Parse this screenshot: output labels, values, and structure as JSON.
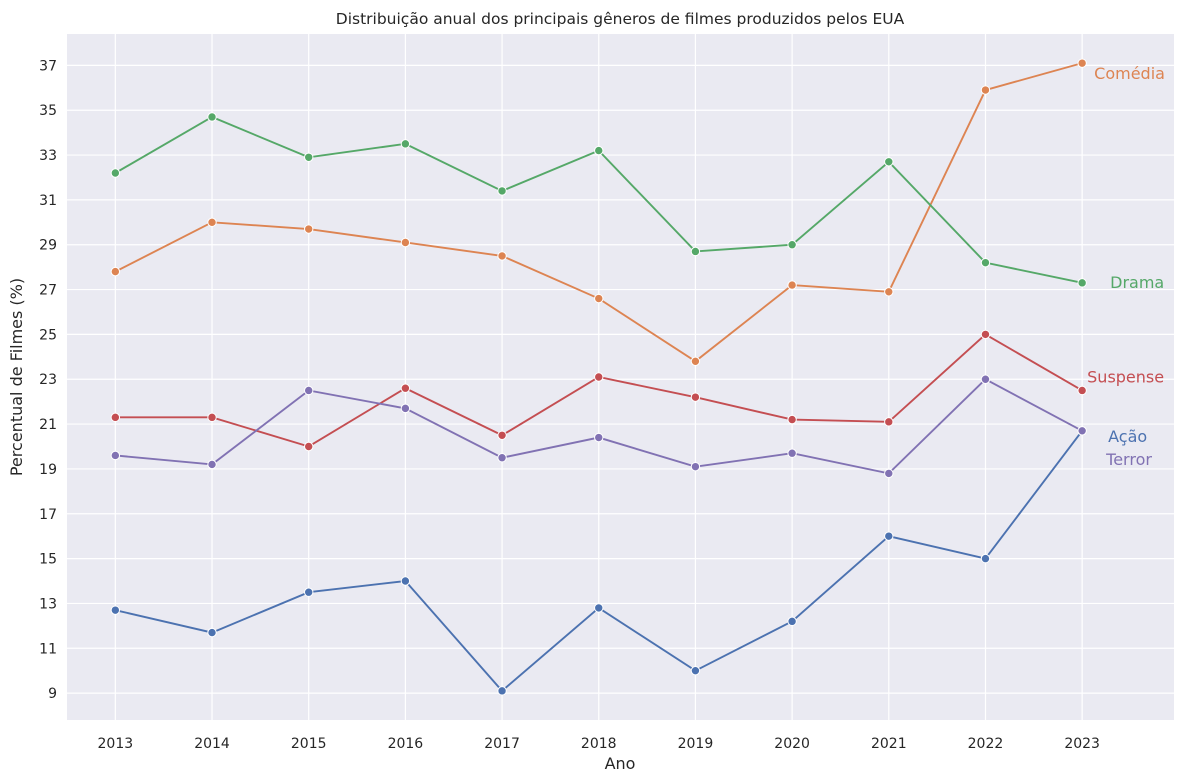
{
  "chart_data": {
    "type": "line",
    "title": "Distribuição anual dos principais gêneros de filmes produzidos pelos EUA",
    "xlabel": "Ano",
    "ylabel": "Percentual de Filmes (%)",
    "x": [
      2013,
      2014,
      2015,
      2016,
      2017,
      2018,
      2019,
      2020,
      2021,
      2022,
      2023
    ],
    "xlim": [
      2012.5,
      2023.95
    ],
    "ylim": [
      7.8,
      38.4
    ],
    "yticks": [
      9,
      11,
      13,
      15,
      17,
      19,
      21,
      23,
      25,
      27,
      29,
      31,
      33,
      35,
      37
    ],
    "grid": true,
    "legend": "inline labels at line ends",
    "background": "#eaeaf2",
    "series": [
      {
        "name": "Ação",
        "color": "#4c72b0",
        "values": [
          12.7,
          11.7,
          13.5,
          14.0,
          9.1,
          12.8,
          10.0,
          12.2,
          16.0,
          15.0,
          20.7
        ]
      },
      {
        "name": "Comédia",
        "color": "#dd8452",
        "values": [
          27.8,
          30.0,
          29.7,
          29.1,
          28.5,
          26.6,
          23.8,
          27.2,
          26.9,
          35.9,
          37.1
        ]
      },
      {
        "name": "Drama",
        "color": "#55a868",
        "values": [
          32.2,
          34.7,
          32.9,
          33.5,
          31.4,
          33.2,
          28.7,
          29.0,
          32.7,
          28.2,
          27.3
        ]
      },
      {
        "name": "Suspense",
        "color": "#c44e52",
        "values": [
          21.3,
          21.3,
          20.0,
          22.6,
          20.5,
          23.1,
          22.2,
          21.2,
          21.1,
          25.0,
          22.5
        ]
      },
      {
        "name": "Terror",
        "color": "#8172b3",
        "values": [
          19.6,
          19.2,
          22.5,
          21.7,
          19.5,
          20.4,
          19.1,
          19.7,
          18.8,
          23.0,
          20.7
        ]
      }
    ]
  }
}
